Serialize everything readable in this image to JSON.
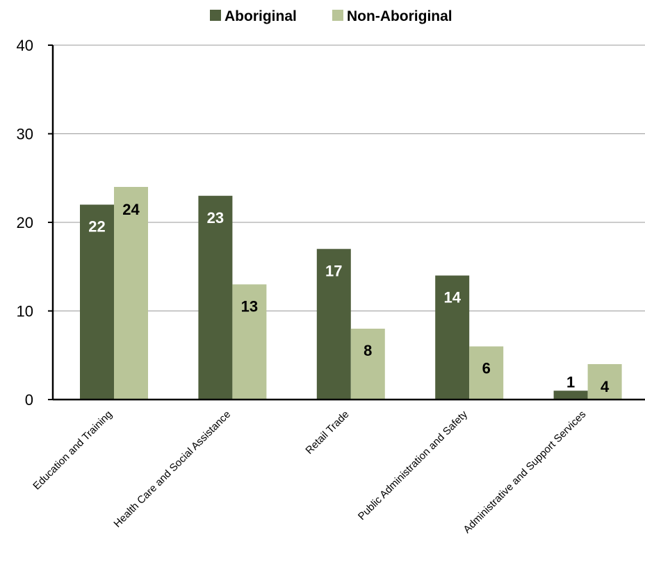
{
  "chart_data": {
    "type": "bar",
    "title": "",
    "xlabel": "",
    "ylabel": "",
    "categories": [
      "Education and Training",
      "Health Care and Social Assistance",
      "Retail Trade",
      "Public Administration and Safety",
      "Administrative and Support Services"
    ],
    "series": [
      {
        "name": "Aboriginal",
        "values": [
          22,
          23,
          17,
          14,
          1
        ],
        "color": "#4f5f3c",
        "label_color": "#ffffff",
        "small_label_color": "#000000"
      },
      {
        "name": "Non-Aboriginal",
        "values": [
          24,
          13,
          8,
          6,
          4
        ],
        "color": "#b9c598",
        "label_color": "#000000"
      }
    ],
    "ylim": [
      0,
      40
    ],
    "yticks": [
      0,
      10,
      20,
      30,
      40
    ],
    "grid": true,
    "legend_position": "top-center",
    "data_labels": true
  }
}
